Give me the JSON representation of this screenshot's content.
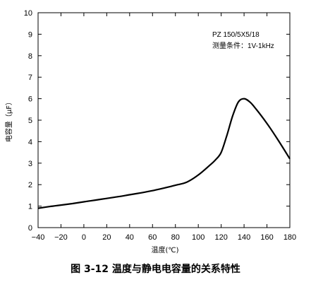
{
  "caption": "图 3-12 温度与静电电容量的关系特性",
  "chart_data": {
    "type": "line",
    "title": "图 3-12 温度与静电电容量的关系特性",
    "xlabel": "温度(℃)",
    "ylabel": "电容量（μF）",
    "xlim": [
      -40,
      180
    ],
    "ylim": [
      0,
      10
    ],
    "x_ticks": [
      -40,
      -20,
      0,
      20,
      40,
      60,
      80,
      100,
      120,
      140,
      160,
      180
    ],
    "x_tick_labels": [
      "−40",
      "−20",
      "0",
      "20",
      "40",
      "60",
      "80",
      "100",
      "120",
      "140",
      "160",
      "180"
    ],
    "y_ticks": [
      0,
      1,
      2,
      3,
      4,
      5,
      6,
      7,
      8,
      9,
      10
    ],
    "y_tick_labels": [
      "0",
      "1",
      "2",
      "3",
      "4",
      "5",
      "6",
      "7",
      "8",
      "9",
      "10"
    ],
    "grid": false,
    "legend": {
      "placement": "top-right",
      "lines": [
        "PZ 150/5X5/18",
        "测量条件：1V-1kHz"
      ]
    },
    "series": [
      {
        "name": "",
        "x": [
          -40,
          -30,
          -20,
          -10,
          0,
          10,
          20,
          30,
          40,
          50,
          60,
          70,
          80,
          90,
          100,
          110,
          115,
          120,
          125,
          130,
          135,
          140,
          145,
          150,
          160,
          170,
          180
        ],
        "y": [
          0.9,
          0.98,
          1.05,
          1.12,
          1.2,
          1.28,
          1.36,
          1.44,
          1.53,
          1.62,
          1.72,
          1.84,
          1.97,
          2.12,
          2.45,
          2.9,
          3.15,
          3.5,
          4.3,
          5.2,
          5.85,
          6.0,
          5.85,
          5.55,
          4.85,
          4.05,
          3.2
        ]
      }
    ],
    "line_color": "#000000"
  }
}
